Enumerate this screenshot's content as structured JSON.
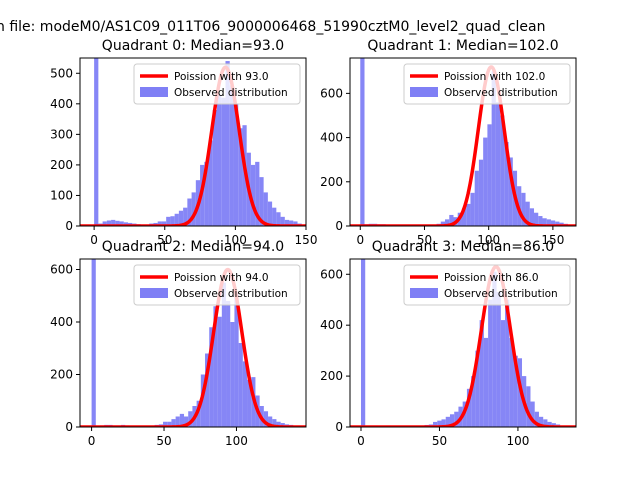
{
  "figure_title": "n file: modeM0/AS1C09_011T06_9000006468_51990cztM0_level2_quad_clean",
  "colors": {
    "poisson": "#ff0000",
    "hist": "#7f7ff5",
    "hist_edge": "#5a5af0"
  },
  "chart_data": [
    {
      "type": "bar",
      "title": "Quadrant 0: Median=93.0",
      "xlim": [
        -10,
        150
      ],
      "ylim": [
        0,
        550
      ],
      "xticks": [
        0,
        50,
        100,
        150
      ],
      "yticks": [
        0,
        100,
        200,
        300,
        400,
        500
      ],
      "legend": {
        "position": "top-right",
        "poisson_label": "Poission with 93.0",
        "hist_label": "Observed distribution"
      },
      "poisson_mean": 93.0,
      "poisson_peak": 520,
      "bin_width": 3,
      "series": [
        {
          "name": "Observed distribution",
          "x": [
            0,
            3,
            6,
            9,
            12,
            15,
            18,
            21,
            24,
            27,
            30,
            33,
            36,
            39,
            42,
            45,
            48,
            51,
            54,
            57,
            60,
            63,
            66,
            69,
            72,
            75,
            78,
            81,
            84,
            87,
            90,
            93,
            96,
            99,
            102,
            105,
            108,
            111,
            114,
            117,
            120,
            123,
            126,
            129,
            132,
            135,
            138,
            141,
            144
          ],
          "values": [
            550,
            8,
            15,
            18,
            20,
            17,
            15,
            12,
            10,
            8,
            6,
            5,
            5,
            8,
            10,
            15,
            15,
            30,
            32,
            40,
            50,
            60,
            90,
            110,
            150,
            200,
            210,
            280,
            380,
            430,
            420,
            540,
            460,
            400,
            320,
            330,
            240,
            200,
            210,
            160,
            110,
            80,
            60,
            45,
            30,
            20,
            18,
            15,
            8
          ]
        },
        {
          "name": "Poission with 93.0",
          "type": "line"
        }
      ]
    },
    {
      "type": "bar",
      "title": "Quadrant 1: Median=102.0",
      "xlim": [
        -8,
        168
      ],
      "ylim": [
        0,
        760
      ],
      "xticks": [
        0,
        50,
        100,
        150
      ],
      "yticks": [
        0,
        200,
        400,
        600
      ],
      "legend": {
        "position": "top-right",
        "poisson_label": "Poission with 102.0",
        "hist_label": "Observed distribution"
      },
      "poisson_mean": 102.0,
      "poisson_peak": 720,
      "bin_width": 3.3,
      "series": [
        {
          "name": "Observed distribution",
          "x": [
            0,
            3.3,
            6.6,
            9.9,
            13.2,
            16.5,
            19.8,
            23.1,
            26.4,
            29.7,
            33,
            36.3,
            39.6,
            42.9,
            46.2,
            49.5,
            52.8,
            56.1,
            59.4,
            62.7,
            66,
            69.3,
            72.6,
            75.9,
            79.2,
            82.5,
            85.8,
            89.1,
            92.4,
            95.7,
            99,
            102.3,
            105.6,
            108.9,
            112.2,
            115.5,
            118.8,
            122.1,
            125.4,
            128.7,
            132,
            135.3,
            138.6,
            141.9,
            145.2,
            148.5,
            151.8,
            155.1,
            158.4
          ],
          "values": [
            760,
            8,
            10,
            10,
            8,
            8,
            6,
            6,
            5,
            5,
            5,
            4,
            4,
            4,
            4,
            5,
            5,
            5,
            10,
            20,
            30,
            50,
            40,
            60,
            80,
            100,
            150,
            250,
            300,
            400,
            460,
            700,
            560,
            500,
            380,
            310,
            250,
            180,
            150,
            110,
            80,
            60,
            45,
            35,
            30,
            25,
            20,
            15,
            10
          ]
        },
        {
          "name": "Poission with 102.0",
          "type": "line"
        }
      ]
    },
    {
      "type": "bar",
      "title": "Quadrant 2: Median=94.0",
      "xlim": [
        -8,
        148
      ],
      "ylim": [
        0,
        640
      ],
      "xticks": [
        0,
        50,
        100
      ],
      "yticks": [
        0,
        200,
        400,
        600
      ],
      "legend": {
        "position": "top-right",
        "poisson_label": "Poission with 94.0",
        "hist_label": "Observed distribution"
      },
      "poisson_mean": 94.0,
      "poisson_peak": 600,
      "bin_width": 2.9,
      "series": [
        {
          "name": "Observed distribution",
          "x": [
            0,
            2.9,
            5.8,
            8.7,
            11.6,
            14.5,
            17.4,
            20.3,
            23.2,
            26.1,
            29,
            31.9,
            34.8,
            37.7,
            40.6,
            43.5,
            46.4,
            49.3,
            52.2,
            55.1,
            58,
            60.9,
            63.8,
            66.7,
            69.6,
            72.5,
            75.4,
            78.3,
            81.2,
            84.1,
            87,
            89.9,
            92.8,
            95.7,
            98.6,
            101.5,
            104.4,
            107.3,
            110.2,
            113.1,
            116,
            118.9,
            121.8,
            124.7,
            127.6,
            130.5,
            133.4,
            136.3
          ],
          "values": [
            640,
            5,
            6,
            8,
            8,
            6,
            6,
            8,
            6,
            5,
            5,
            5,
            4,
            5,
            5,
            8,
            10,
            20,
            20,
            30,
            40,
            50,
            40,
            60,
            80,
            100,
            200,
            280,
            380,
            460,
            420,
            550,
            480,
            400,
            510,
            320,
            250,
            180,
            190,
            120,
            80,
            60,
            40,
            30,
            20,
            15,
            10,
            8
          ]
        },
        {
          "name": "Poission with 94.0",
          "type": "line"
        }
      ]
    },
    {
      "type": "bar",
      "title": "Quadrant 3: Median=86.0",
      "xlim": [
        -7,
        137
      ],
      "ylim": [
        0,
        660
      ],
      "xticks": [
        0,
        50,
        100
      ],
      "yticks": [
        0,
        200,
        400,
        600
      ],
      "legend": {
        "position": "top-right",
        "poisson_label": "Poission with 86.0",
        "hist_label": "Observed distribution"
      },
      "poisson_mean": 86.0,
      "poisson_peak": 630,
      "bin_width": 2.7,
      "series": [
        {
          "name": "Observed distribution",
          "x": [
            0,
            2.7,
            5.4,
            8.1,
            10.8,
            13.5,
            16.2,
            18.9,
            21.6,
            24.3,
            27,
            29.7,
            32.4,
            35.1,
            37.8,
            40.5,
            43.2,
            45.9,
            48.6,
            51.3,
            54,
            56.7,
            59.4,
            62.1,
            64.8,
            67.5,
            70.2,
            72.9,
            75.6,
            78.3,
            81,
            83.7,
            86.4,
            89.1,
            91.8,
            94.5,
            97.2,
            99.9,
            102.6,
            105.3,
            108,
            110.7,
            113.4,
            116.1,
            118.8,
            121.5,
            124.2,
            126.9
          ],
          "values": [
            660,
            5,
            6,
            6,
            5,
            5,
            6,
            5,
            5,
            5,
            4,
            4,
            4,
            5,
            5,
            8,
            10,
            20,
            25,
            30,
            40,
            50,
            60,
            80,
            100,
            150,
            200,
            300,
            420,
            350,
            500,
            610,
            530,
            420,
            500,
            350,
            280,
            270,
            200,
            160,
            100,
            60,
            40,
            30,
            20,
            15,
            10,
            5
          ]
        },
        {
          "name": "Poission with 86.0",
          "type": "line"
        }
      ]
    }
  ]
}
